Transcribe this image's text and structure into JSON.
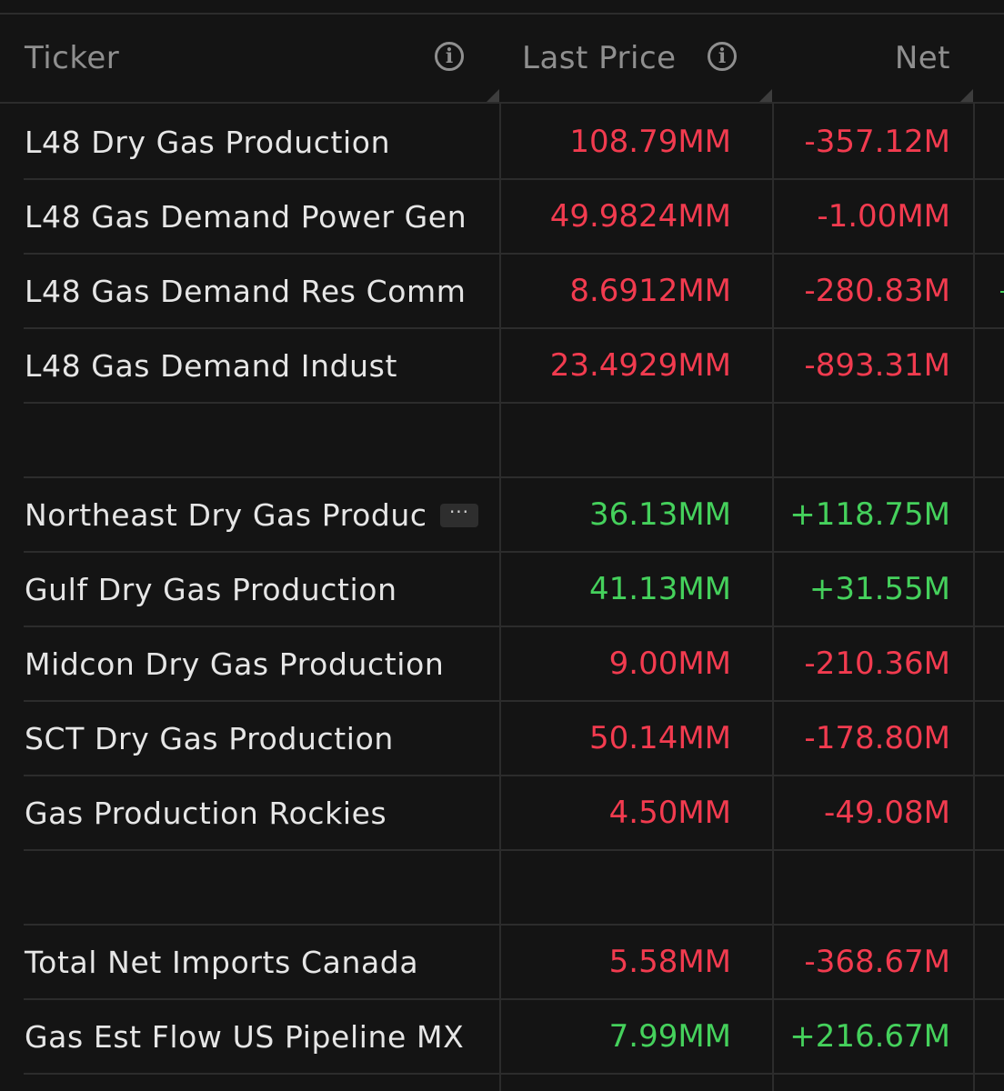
{
  "header": {
    "ticker_label": "Ticker",
    "last_price_label": "Last Price",
    "net_label": "Net",
    "info_glyph": "i"
  },
  "rows": [
    {
      "name": "L48 Dry Gas Production",
      "last_price": "108.79MM",
      "net": "-357.12M",
      "direction": "down"
    },
    {
      "name": "L48 Gas Demand Power Gen",
      "last_price": "49.9824MM",
      "net": "-1.00MM",
      "direction": "down"
    },
    {
      "name": "L48 Gas Demand Res Comm",
      "last_price": "8.6912MM",
      "net": "-280.83M",
      "direction": "down"
    },
    {
      "name": "L48 Gas Demand Indust",
      "last_price": "23.4929MM",
      "net": "-893.31M",
      "direction": "down"
    },
    {
      "name": "",
      "last_price": "",
      "net": "",
      "direction": "none"
    },
    {
      "name": "Northeast Dry Gas Produc",
      "last_price": "36.13MM",
      "net": "+118.75M",
      "direction": "up",
      "truncated": true,
      "more_glyph": "···"
    },
    {
      "name": "Gulf Dry Gas Production",
      "last_price": "41.13MM",
      "net": "+31.55M",
      "direction": "up"
    },
    {
      "name": "Midcon Dry Gas Production",
      "last_price": "9.00MM",
      "net": "-210.36M",
      "direction": "down"
    },
    {
      "name": "SCT Dry Gas Production",
      "last_price": "50.14MM",
      "net": "-178.80M",
      "direction": "down"
    },
    {
      "name": "Gas Production Rockies",
      "last_price": "4.50MM",
      "net": "-49.08M",
      "direction": "down"
    },
    {
      "name": "",
      "last_price": "",
      "net": "",
      "direction": "none"
    },
    {
      "name": "Total Net Imports Canada",
      "last_price": "5.58MM",
      "net": "-368.67M",
      "direction": "down"
    },
    {
      "name": "Gas Est Flow US Pipeline MX",
      "last_price": "7.99MM",
      "net": "+216.67M",
      "direction": "up"
    }
  ],
  "colors": {
    "background": "#141414",
    "negative": "#f23b4f",
    "positive": "#45d15c",
    "header_text": "#8f8f8f",
    "row_text": "#e6e6e6",
    "grid_line": "#2c2c2c"
  },
  "icons": {
    "header_info": "info-circle-icon",
    "more": "ellipsis-icon",
    "column_resize": "resize-corner-icon"
  }
}
